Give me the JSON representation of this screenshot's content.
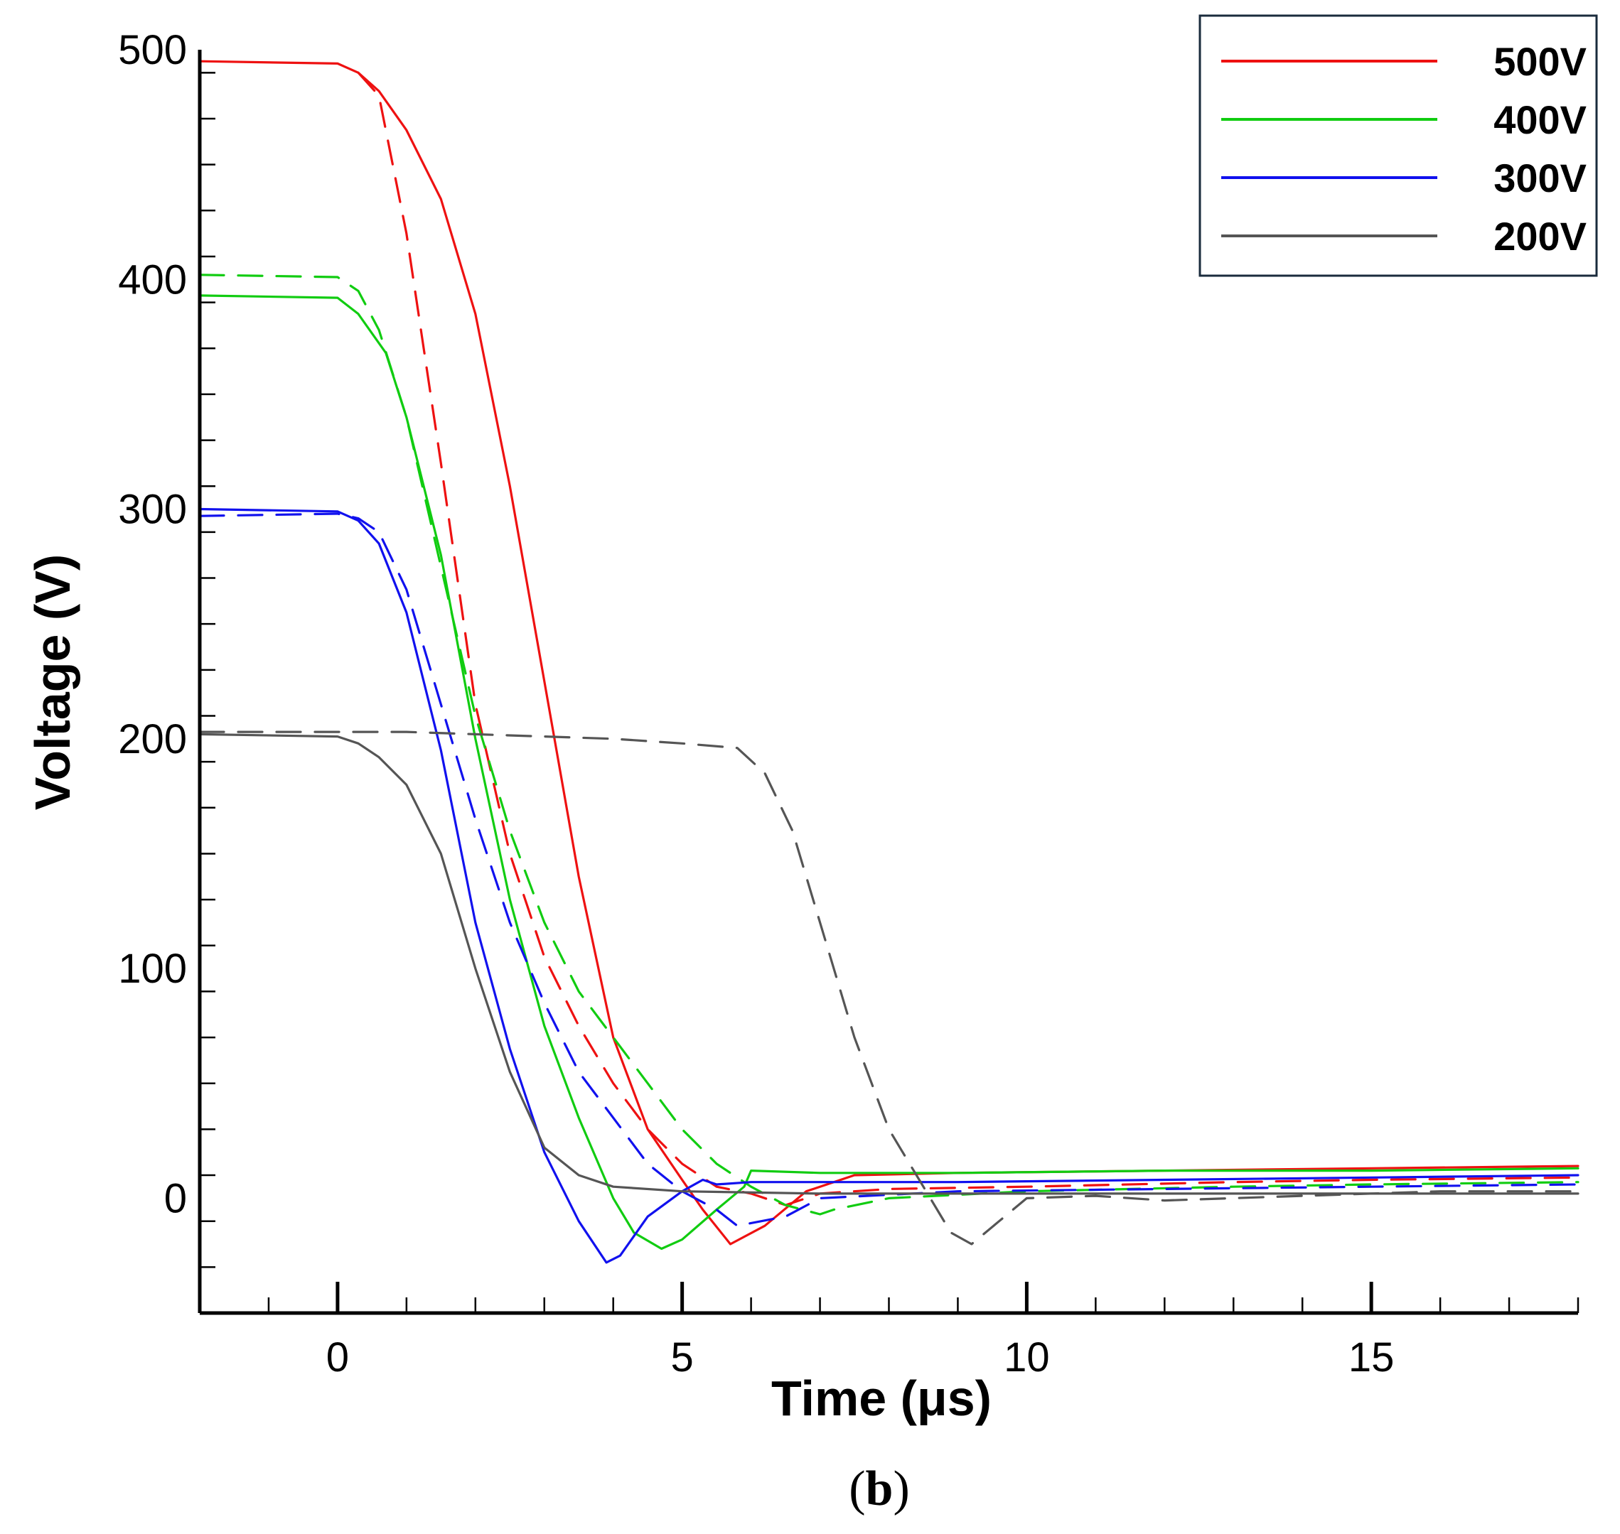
{
  "chart_data": {
    "type": "line",
    "xlabel": "Time (μs)",
    "ylabel": "Voltage (V)",
    "xlim": [
      -2,
      18
    ],
    "ylim": [
      -50,
      500
    ],
    "x_ticks": [
      0,
      5,
      10,
      15
    ],
    "x_tick_labels": [
      "0",
      "5",
      "10",
      "15"
    ],
    "y_ticks": [
      0,
      100,
      200,
      300,
      400,
      500
    ],
    "y_tick_labels": [
      "0",
      "100",
      "200",
      "300",
      "400",
      "500"
    ],
    "x_minor_step": 1,
    "y_minor_step": 20,
    "grid": false,
    "legend_position": "top-right",
    "caption": {
      "open": "(",
      "letter": "b",
      "close": ")"
    },
    "note": "Solid lines and dashed lines are drawn in the same color per voltage level.",
    "series": [
      {
        "name": "500V",
        "color": "#ee1111",
        "style": "solid",
        "x": [
          -2,
          0,
          0.3,
          0.6,
          1.0,
          1.5,
          2.0,
          2.5,
          3.0,
          3.5,
          4.0,
          4.5,
          5.0,
          5.3,
          5.7,
          6.2,
          6.8,
          7.5,
          9,
          12,
          15,
          18
        ],
        "y": [
          495,
          494,
          490,
          482,
          465,
          435,
          385,
          310,
          225,
          140,
          70,
          30,
          8,
          -5,
          -20,
          -12,
          3,
          10,
          11,
          12,
          13,
          14
        ]
      },
      {
        "name": "500V",
        "color": "#ee1111",
        "style": "dashed",
        "x": [
          0.3,
          0.6,
          1.0,
          1.5,
          2.0,
          2.5,
          3.0,
          3.5,
          4.0,
          4.5,
          5.0,
          5.5,
          6.0,
          6.5,
          7.0,
          8,
          10,
          13,
          15,
          18
        ],
        "y": [
          490,
          480,
          420,
          320,
          215,
          150,
          105,
          75,
          50,
          30,
          15,
          5,
          2,
          -3,
          2,
          4,
          5,
          7,
          8,
          9
        ]
      },
      {
        "name": "400V",
        "color": "#11cc11",
        "style": "solid",
        "x": [
          -2,
          0,
          0.3,
          0.7,
          1.0,
          1.5,
          2.0,
          2.5,
          3.0,
          3.5,
          4.0,
          4.3,
          4.7,
          5.0,
          5.5,
          5.9,
          6.0,
          7,
          9,
          12,
          15,
          18
        ],
        "y": [
          393,
          392,
          385,
          368,
          340,
          280,
          200,
          130,
          75,
          35,
          0,
          -15,
          -22,
          -18,
          -5,
          5,
          12,
          11,
          11,
          12,
          12,
          13
        ]
      },
      {
        "name": "400V",
        "color": "#11cc11",
        "style": "dashed",
        "x": [
          -2,
          0,
          0.3,
          0.6,
          1.0,
          1.5,
          2.0,
          2.5,
          3.0,
          3.5,
          4.0,
          4.5,
          5.0,
          5.5,
          6.0,
          6.5,
          7.0,
          7.2,
          8,
          10,
          13,
          15,
          18
        ],
        "y": [
          402,
          401,
          395,
          378,
          340,
          275,
          210,
          160,
          120,
          90,
          70,
          50,
          30,
          15,
          5,
          -3,
          -7,
          -5,
          0,
          3,
          5,
          6,
          7
        ]
      },
      {
        "name": "300V",
        "color": "#1111ee",
        "style": "solid",
        "x": [
          -2,
          0,
          0.3,
          0.6,
          1.0,
          1.5,
          2.0,
          2.5,
          3.0,
          3.5,
          3.9,
          4.1,
          4.5,
          5.0,
          5.3,
          5.5,
          6.0,
          7,
          9,
          12,
          15,
          18
        ],
        "y": [
          300,
          299,
          295,
          285,
          255,
          195,
          120,
          65,
          20,
          -10,
          -28,
          -25,
          -8,
          3,
          8,
          6,
          7,
          7,
          7,
          8,
          9,
          10
        ]
      },
      {
        "name": "300V",
        "color": "#1111ee",
        "style": "dashed",
        "x": [
          -2,
          0,
          0.3,
          0.6,
          1.0,
          1.5,
          2.0,
          2.5,
          3.0,
          3.5,
          4.0,
          4.5,
          5.0,
          5.5,
          5.8,
          6.5,
          7,
          9,
          12,
          15,
          18
        ],
        "y": [
          297,
          298,
          296,
          290,
          265,
          215,
          165,
          120,
          85,
          55,
          35,
          15,
          3,
          -5,
          -12,
          -8,
          0,
          3,
          4,
          5,
          6
        ]
      },
      {
        "name": "200V",
        "color": "#555555",
        "style": "solid",
        "x": [
          -2,
          0,
          0.3,
          0.6,
          1.0,
          1.5,
          2.0,
          2.5,
          3.0,
          3.5,
          4.0,
          5,
          7,
          10,
          14,
          18
        ],
        "y": [
          202,
          201,
          198,
          192,
          180,
          150,
          100,
          55,
          22,
          10,
          5,
          3,
          2,
          2,
          2,
          2
        ]
      },
      {
        "name": "200V",
        "color": "#555555",
        "style": "dashed",
        "x": [
          -2,
          0,
          1,
          2,
          3,
          4,
          5,
          5.8,
          6.2,
          6.6,
          7.0,
          7.5,
          8.0,
          8.5,
          8.9,
          9.2,
          9.6,
          10.0,
          11,
          12,
          14,
          16,
          18
        ],
        "y": [
          203,
          203,
          203,
          202,
          201,
          200,
          198,
          196,
          185,
          160,
          120,
          70,
          30,
          5,
          -15,
          -20,
          -10,
          0,
          1,
          -1,
          1,
          3,
          3
        ]
      }
    ],
    "legend": [
      {
        "label": "500V",
        "color": "#ee1111"
      },
      {
        "label": "400V",
        "color": "#11cc11"
      },
      {
        "label": "300V",
        "color": "#1111ee"
      },
      {
        "label": "200V",
        "color": "#555555"
      }
    ]
  }
}
